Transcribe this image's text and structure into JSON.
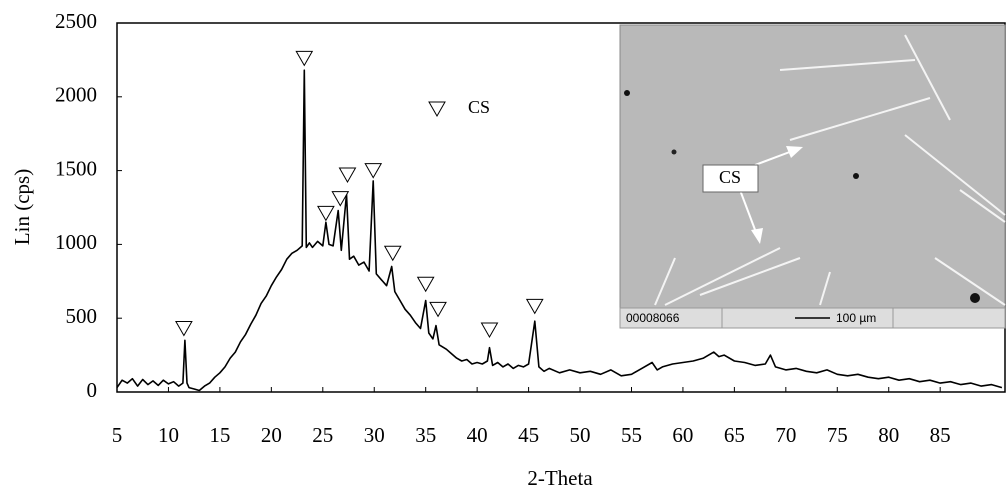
{
  "chart_data": {
    "type": "line",
    "x_label": "2-Theta",
    "y_label": "Lin (cps)",
    "xlim": [
      5,
      91.3
    ],
    "ylim": [
      0,
      2500
    ],
    "xticks": [
      5,
      10,
      15,
      20,
      25,
      30,
      35,
      40,
      45,
      50,
      55,
      60,
      65,
      70,
      75,
      80,
      85
    ],
    "yticks": [
      0,
      500,
      1000,
      1500,
      2000,
      2500
    ],
    "series": [
      {
        "color": "#000000",
        "x": [
          5,
          5.5,
          6,
          6.5,
          7,
          7.5,
          8,
          8.5,
          9,
          9.5,
          10,
          10.5,
          11,
          11.4,
          11.6,
          11.8,
          12,
          12.5,
          13,
          13.5,
          14,
          14.5,
          15,
          15.5,
          16,
          16.5,
          17,
          17.5,
          18,
          18.5,
          19,
          19.5,
          20,
          20.5,
          21,
          21.5,
          22,
          22.5,
          23,
          23.2,
          23.4,
          23.7,
          24,
          24.5,
          25,
          25.3,
          25.6,
          26,
          26.5,
          26.8,
          27.3,
          27.6,
          28,
          28.5,
          29,
          29.5,
          29.9,
          30.2,
          30.7,
          31.2,
          31.7,
          32,
          32.5,
          33,
          33.5,
          34,
          34.5,
          35,
          35.3,
          35.7,
          36,
          36.3,
          37,
          37.5,
          38,
          38.5,
          39,
          39.5,
          40,
          40.5,
          41,
          41.2,
          41.5,
          42,
          42.5,
          43,
          43.5,
          44,
          44.5,
          45,
          45.6,
          46,
          46.5,
          47,
          48,
          49,
          50,
          51,
          52,
          53,
          54,
          55,
          56,
          57,
          57.5,
          58,
          59,
          60,
          61,
          62,
          63,
          63.5,
          64,
          65,
          66,
          67,
          68,
          68.5,
          69,
          70,
          71,
          72,
          73,
          74,
          75,
          76,
          77,
          78,
          79,
          80,
          81,
          82,
          83,
          84,
          85,
          86,
          87,
          88,
          89,
          90,
          91
        ],
        "values": [
          30,
          80,
          60,
          90,
          40,
          85,
          50,
          75,
          45,
          80,
          55,
          70,
          40,
          60,
          350,
          60,
          30,
          20,
          10,
          40,
          60,
          100,
          130,
          170,
          230,
          270,
          340,
          390,
          460,
          520,
          600,
          650,
          720,
          780,
          830,
          900,
          940,
          960,
          990,
          2180,
          980,
          1010,
          980,
          1020,
          990,
          1150,
          1000,
          990,
          1230,
          960,
          1340,
          900,
          920,
          860,
          880,
          820,
          1430,
          800,
          760,
          720,
          850,
          680,
          620,
          560,
          520,
          470,
          430,
          620,
          400,
          360,
          450,
          320,
          290,
          260,
          230,
          210,
          220,
          190,
          200,
          190,
          210,
          300,
          180,
          200,
          170,
          190,
          160,
          180,
          170,
          190,
          480,
          170,
          140,
          160,
          130,
          150,
          130,
          140,
          120,
          150,
          110,
          120,
          160,
          200,
          150,
          170,
          190,
          200,
          210,
          230,
          270,
          240,
          250,
          210,
          200,
          180,
          190,
          250,
          170,
          150,
          160,
          140,
          130,
          150,
          120,
          110,
          120,
          100,
          90,
          100,
          80,
          90,
          70,
          80,
          60,
          70,
          50,
          60,
          40,
          50,
          30
        ]
      }
    ],
    "peak_markers": {
      "name": "CS",
      "x": [
        11.5,
        23.2,
        25.3,
        26.7,
        27.4,
        29.9,
        31.8,
        35,
        36.2,
        41.2,
        45.6
      ],
      "y": [
        430,
        2260,
        1210,
        1310,
        1470,
        1500,
        940,
        730,
        560,
        420,
        580
      ]
    },
    "inset": {
      "label": "CS",
      "image_id": "00008066",
      "scale_bar": "100 µm"
    }
  }
}
